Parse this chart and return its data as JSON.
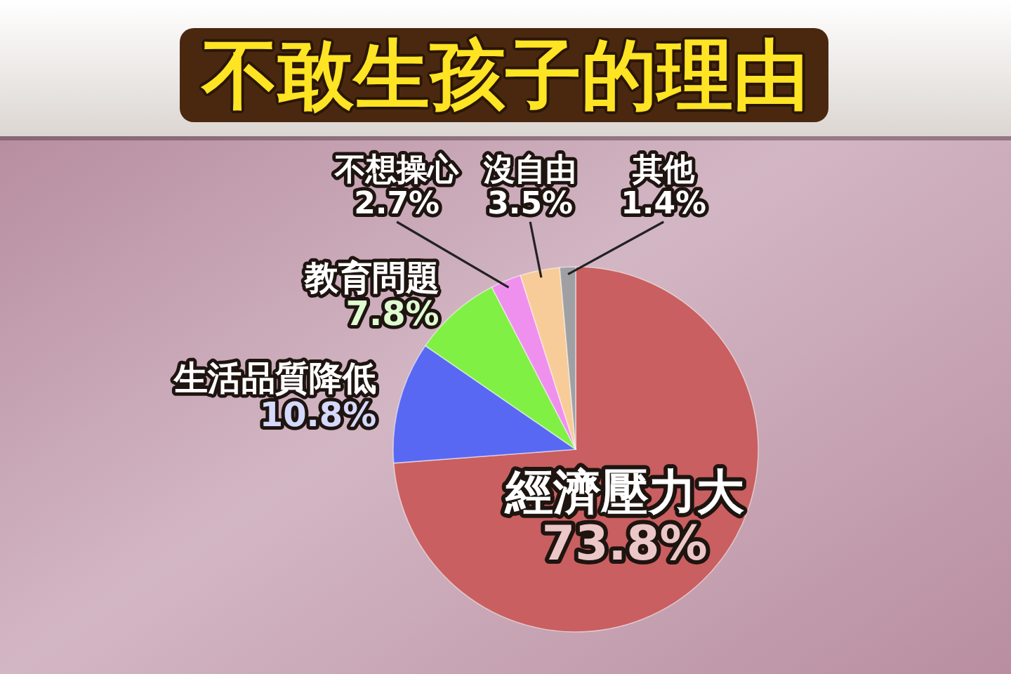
{
  "chart_data": {
    "type": "pie",
    "title": "不敢生孩子的理由",
    "categories": [
      "經濟壓力大",
      "生活品質降低",
      "教育問題",
      "不想操心",
      "沒自由",
      "其他"
    ],
    "values": [
      73.8,
      10.8,
      7.8,
      2.7,
      3.5,
      1.4
    ],
    "colors": [
      "#c95f60",
      "#5868f2",
      "#80f044",
      "#f090ee",
      "#f8cc98",
      "#a0a0a4"
    ],
    "value_labels": [
      "73.8%",
      "10.8%",
      "7.8%",
      "2.7%",
      "3.5%",
      "1.4%"
    ]
  }
}
